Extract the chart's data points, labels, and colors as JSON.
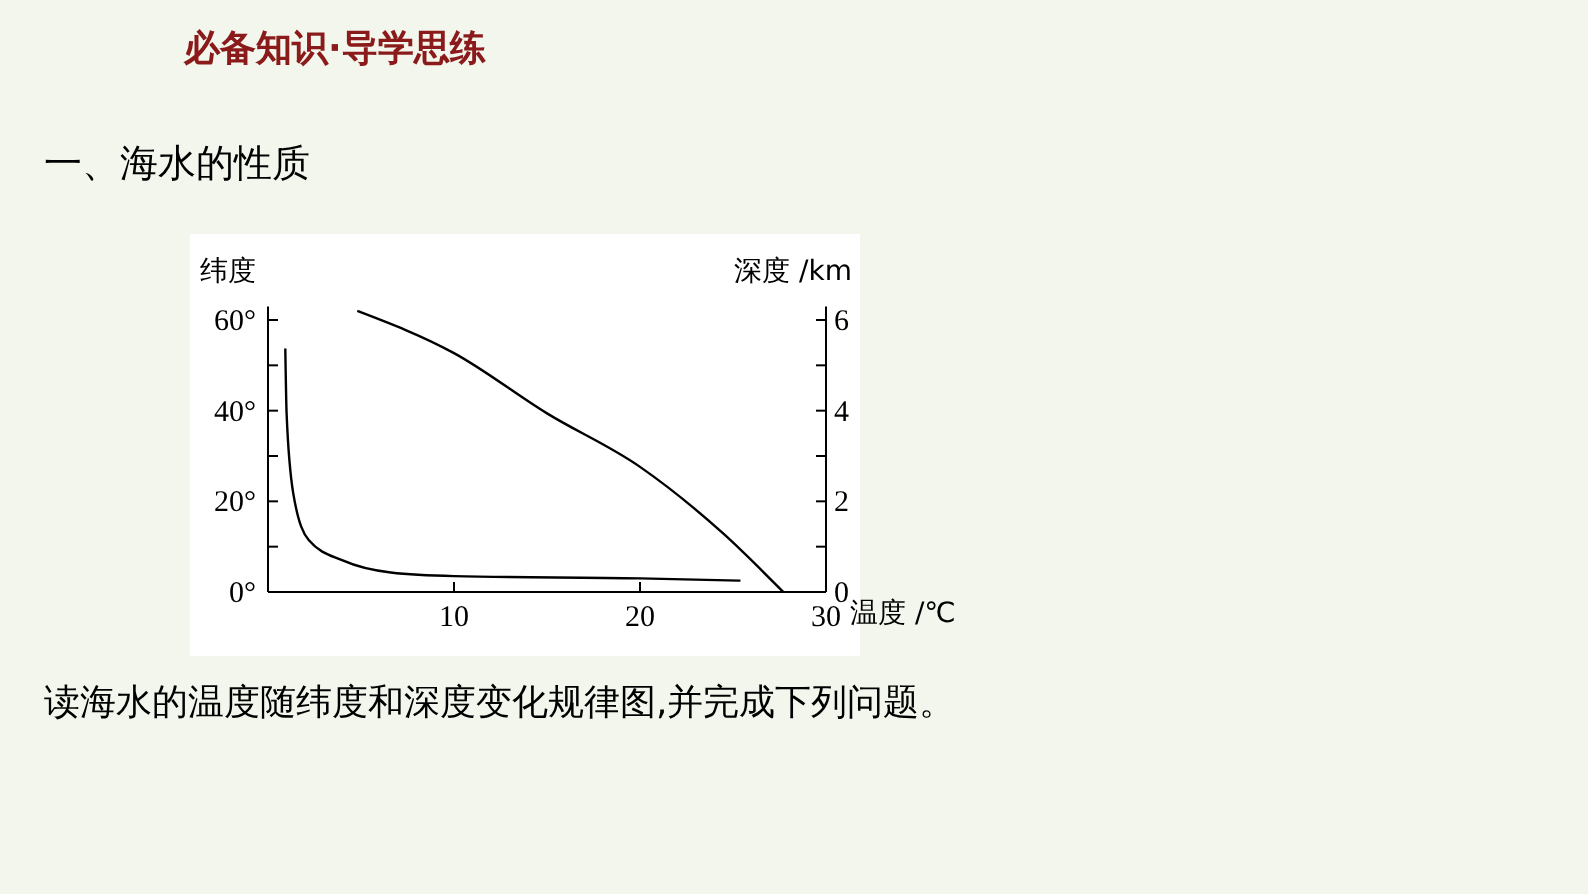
{
  "chart_data": {
    "type": "line",
    "subtitle": "必备知识·导学思练",
    "title": "一、海水的性质",
    "xlabel": "温度 /℃",
    "ylabel": "纬度",
    "y2label": "深度 /km",
    "annotations": [
      "读海水的温度随纬度和深度变化规律图,并完成下列问题。"
    ],
    "xlim": [
      0,
      30
    ],
    "xticks": [
      10,
      20,
      30
    ],
    "ylim": [
      0,
      63
    ],
    "yticks": [
      {
        "value": 0,
        "label": "0°"
      },
      {
        "value": 10,
        "label": null
      },
      {
        "value": 20,
        "label": "20°"
      },
      {
        "value": 30,
        "label": null
      },
      {
        "value": 40,
        "label": "40°"
      },
      {
        "value": 50,
        "label": null
      },
      {
        "value": 60,
        "label": "60°"
      }
    ],
    "y2lim": [
      0,
      6.3
    ],
    "y2ticks": [
      0,
      {
        "value": 1,
        "label": null
      },
      2,
      {
        "value": 3,
        "label": null
      },
      4,
      {
        "value": 5,
        "label": null
      },
      6
    ],
    "grid": false,
    "marker": "none",
    "line_style": "solid",
    "series": [
      {
        "color": "#000000",
        "x": [
          4.8,
          10,
          15,
          20,
          24.5,
          27.7
        ],
        "values": [
          62,
          52.7,
          39.4,
          27.6,
          12.8,
          0
        ]
      },
      {
        "color": "#000000",
        "axis": "y2",
        "x": [
          0.93,
          1.0,
          1.36,
          2.2,
          4.05,
          6.6,
          10,
          20,
          25.4
        ],
        "values": [
          5.37,
          3.94,
          2.17,
          1.14,
          0.69,
          0.43,
          0.35,
          0.3,
          0.25
        ]
      }
    ]
  }
}
